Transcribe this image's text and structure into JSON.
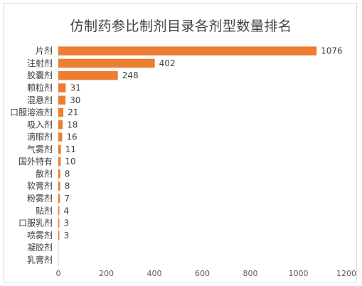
{
  "chart_data": {
    "type": "bar",
    "orientation": "horizontal",
    "title": "仿制药参比制剂目录各剂型数量排名",
    "xlabel": "",
    "ylabel": "",
    "xlim": [
      0,
      1200
    ],
    "xticks": [
      "0",
      "200",
      "400",
      "600",
      "800",
      "1000",
      "1200"
    ],
    "grid": false,
    "legend": "none",
    "bar_color": "#ed7d31",
    "categories": [
      "片剂",
      "注射剂",
      "胶囊剂",
      "颗粒剂",
      "混悬剂",
      "口服溶液剂",
      "吸入剂",
      "滴眼剂",
      "气雾剂",
      "国外特有",
      "散剂",
      "软膏剂",
      "粉雾剂",
      "贴剂",
      "口服乳剂",
      "喷雾剂",
      "凝胶剂",
      "乳膏剂"
    ],
    "values": [
      1076,
      402,
      248,
      31,
      30,
      21,
      18,
      16,
      11,
      10,
      8,
      8,
      7,
      4,
      3,
      3,
      null,
      null
    ],
    "value_labels": [
      "1076",
      "402",
      "248",
      "31",
      "30",
      "21",
      "18",
      "16",
      "11",
      "10",
      "8",
      "8",
      "7",
      "4",
      "3",
      "3",
      "",
      ""
    ]
  }
}
